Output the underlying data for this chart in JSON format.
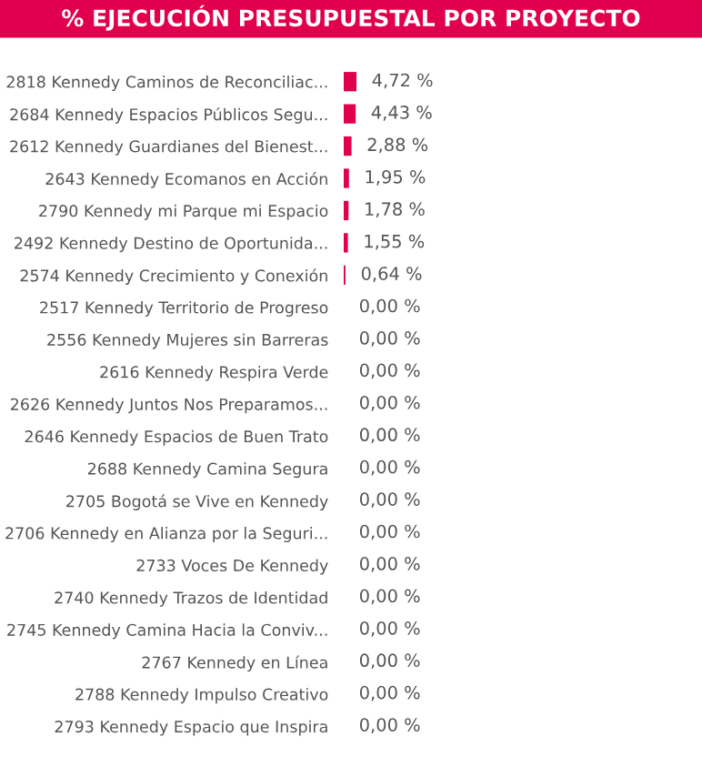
{
  "chart_data": {
    "type": "bar",
    "orientation": "horizontal",
    "title": "% EJECUCIÓN PRESUPUESTAL POR PROYECTO",
    "categories": [
      "2818 Kennedy Caminos de Reconciliac...",
      "2684 Kennedy Espacios Públicos Segu...",
      "2612 Kennedy Guardianes del Bienest...",
      "2643 Kennedy Ecomanos en Acción",
      "2790 Kennedy mi Parque mi Espacio",
      "2492 Kennedy Destino de Oportunida...",
      "2574 Kennedy Crecimiento y Conexión",
      "2517 Kennedy Territorio de Progreso",
      "2556 Kennedy Mujeres sin Barreras",
      "2616 Kennedy Respira Verde",
      "2626 Kennedy Juntos Nos Preparamos...",
      "2646 Kennedy Espacios de Buen Trato",
      "2688 Kennedy Camina Segura",
      "2705 Bogotá se Vive en Kennedy",
      "2706 Kennedy en Alianza por la Seguri...",
      "2733 Voces De Kennedy",
      "2740 Kennedy Trazos de Identidad",
      "2745 Kennedy Camina Hacia la Conviv...",
      "2767 Kennedy en Línea",
      "2788 Kennedy Impulso Creativo",
      "2793 Kennedy Espacio que Inspira"
    ],
    "values": [
      4.72,
      4.43,
      2.88,
      1.95,
      1.78,
      1.55,
      0.64,
      0,
      0,
      0,
      0,
      0,
      0,
      0,
      0,
      0,
      0,
      0,
      0,
      0,
      0
    ],
    "value_labels": [
      "4,72 %",
      "4,43 %",
      "2,88 %",
      "1,95 %",
      "1,78 %",
      "1,55 %",
      "0,64 %",
      "0,00 %",
      "0,00 %",
      "0,00 %",
      "0,00 %",
      "0,00 %",
      "0,00 %",
      "0,00 %",
      "0,00 %",
      "0,00 %",
      "0,00 %",
      "0,00 %",
      "0,00 %",
      "0,00 %",
      "0,00 %"
    ],
    "color": "#e0004d",
    "tick_labels": "y",
    "grid": false,
    "legend": false
  }
}
